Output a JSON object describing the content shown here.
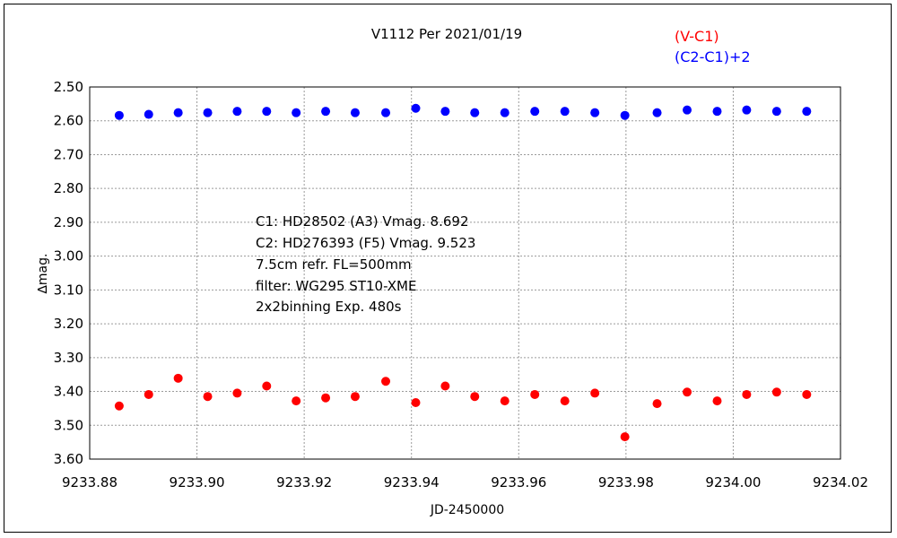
{
  "chart_data": {
    "type": "scatter",
    "title": "V1112 Per   2021/01/19",
    "xlabel": "JD-2450000",
    "ylabel": "∆mag.",
    "xlim": [
      9233.88,
      9234.02
    ],
    "ylim": [
      2.5,
      3.6
    ],
    "y_inverted": true,
    "grid": true,
    "legend_position": "top-right",
    "xticks": [
      "9233.88",
      "9233.90",
      "9233.92",
      "9233.94",
      "9233.96",
      "9233.98",
      "9234.00",
      "9234.02"
    ],
    "yticks": [
      "2.50",
      "2.60",
      "2.70",
      "2.80",
      "2.90",
      "3.00",
      "3.10",
      "3.20",
      "3.30",
      "3.40",
      "3.50",
      "3.60"
    ],
    "series": [
      {
        "name": "(V-C1)",
        "color": "#ff0000",
        "x": [
          9233.8855,
          9233.891,
          9233.8965,
          9233.902,
          9233.9075,
          9233.913,
          9233.9185,
          9233.924,
          9233.9295,
          9233.9352,
          9233.9408,
          9233.9463,
          9233.9518,
          9233.9574,
          9233.963,
          9233.9686,
          9233.9742,
          9233.9798,
          9233.9858,
          9233.9914,
          9233.997,
          9234.0025,
          9234.0081,
          9234.0137
        ],
        "y": [
          3.443,
          3.409,
          3.361,
          3.415,
          3.405,
          3.384,
          3.428,
          3.419,
          3.415,
          3.37,
          3.433,
          3.384,
          3.415,
          3.428,
          3.409,
          3.428,
          3.405,
          3.534,
          3.436,
          3.402,
          3.428,
          3.409,
          3.402,
          3.409
        ]
      },
      {
        "name": "(C2-C1)+2",
        "color": "#0000ff",
        "x": [
          9233.8855,
          9233.891,
          9233.8965,
          9233.902,
          9233.9075,
          9233.913,
          9233.9185,
          9233.924,
          9233.9295,
          9233.9352,
          9233.9408,
          9233.9463,
          9233.9518,
          9233.9574,
          9233.963,
          9233.9686,
          9233.9742,
          9233.9798,
          9233.9858,
          9233.9914,
          9233.997,
          9234.0025,
          9234.0081,
          9234.0137
        ],
        "y": [
          2.584,
          2.581,
          2.576,
          2.576,
          2.572,
          2.572,
          2.576,
          2.572,
          2.576,
          2.576,
          2.563,
          2.572,
          2.576,
          2.576,
          2.572,
          2.572,
          2.576,
          2.584,
          2.576,
          2.568,
          2.572,
          2.568,
          2.572,
          2.572
        ]
      }
    ],
    "annotations": [
      "C1: HD28502 (A3) Vmag. 8.692",
      "C2: HD276393 (F5) Vmag. 9.523",
      "7.5cm refr. FL=500mm",
      "filter: WG295  ST10-XME",
      "2x2binning  Exp. 480s"
    ]
  }
}
